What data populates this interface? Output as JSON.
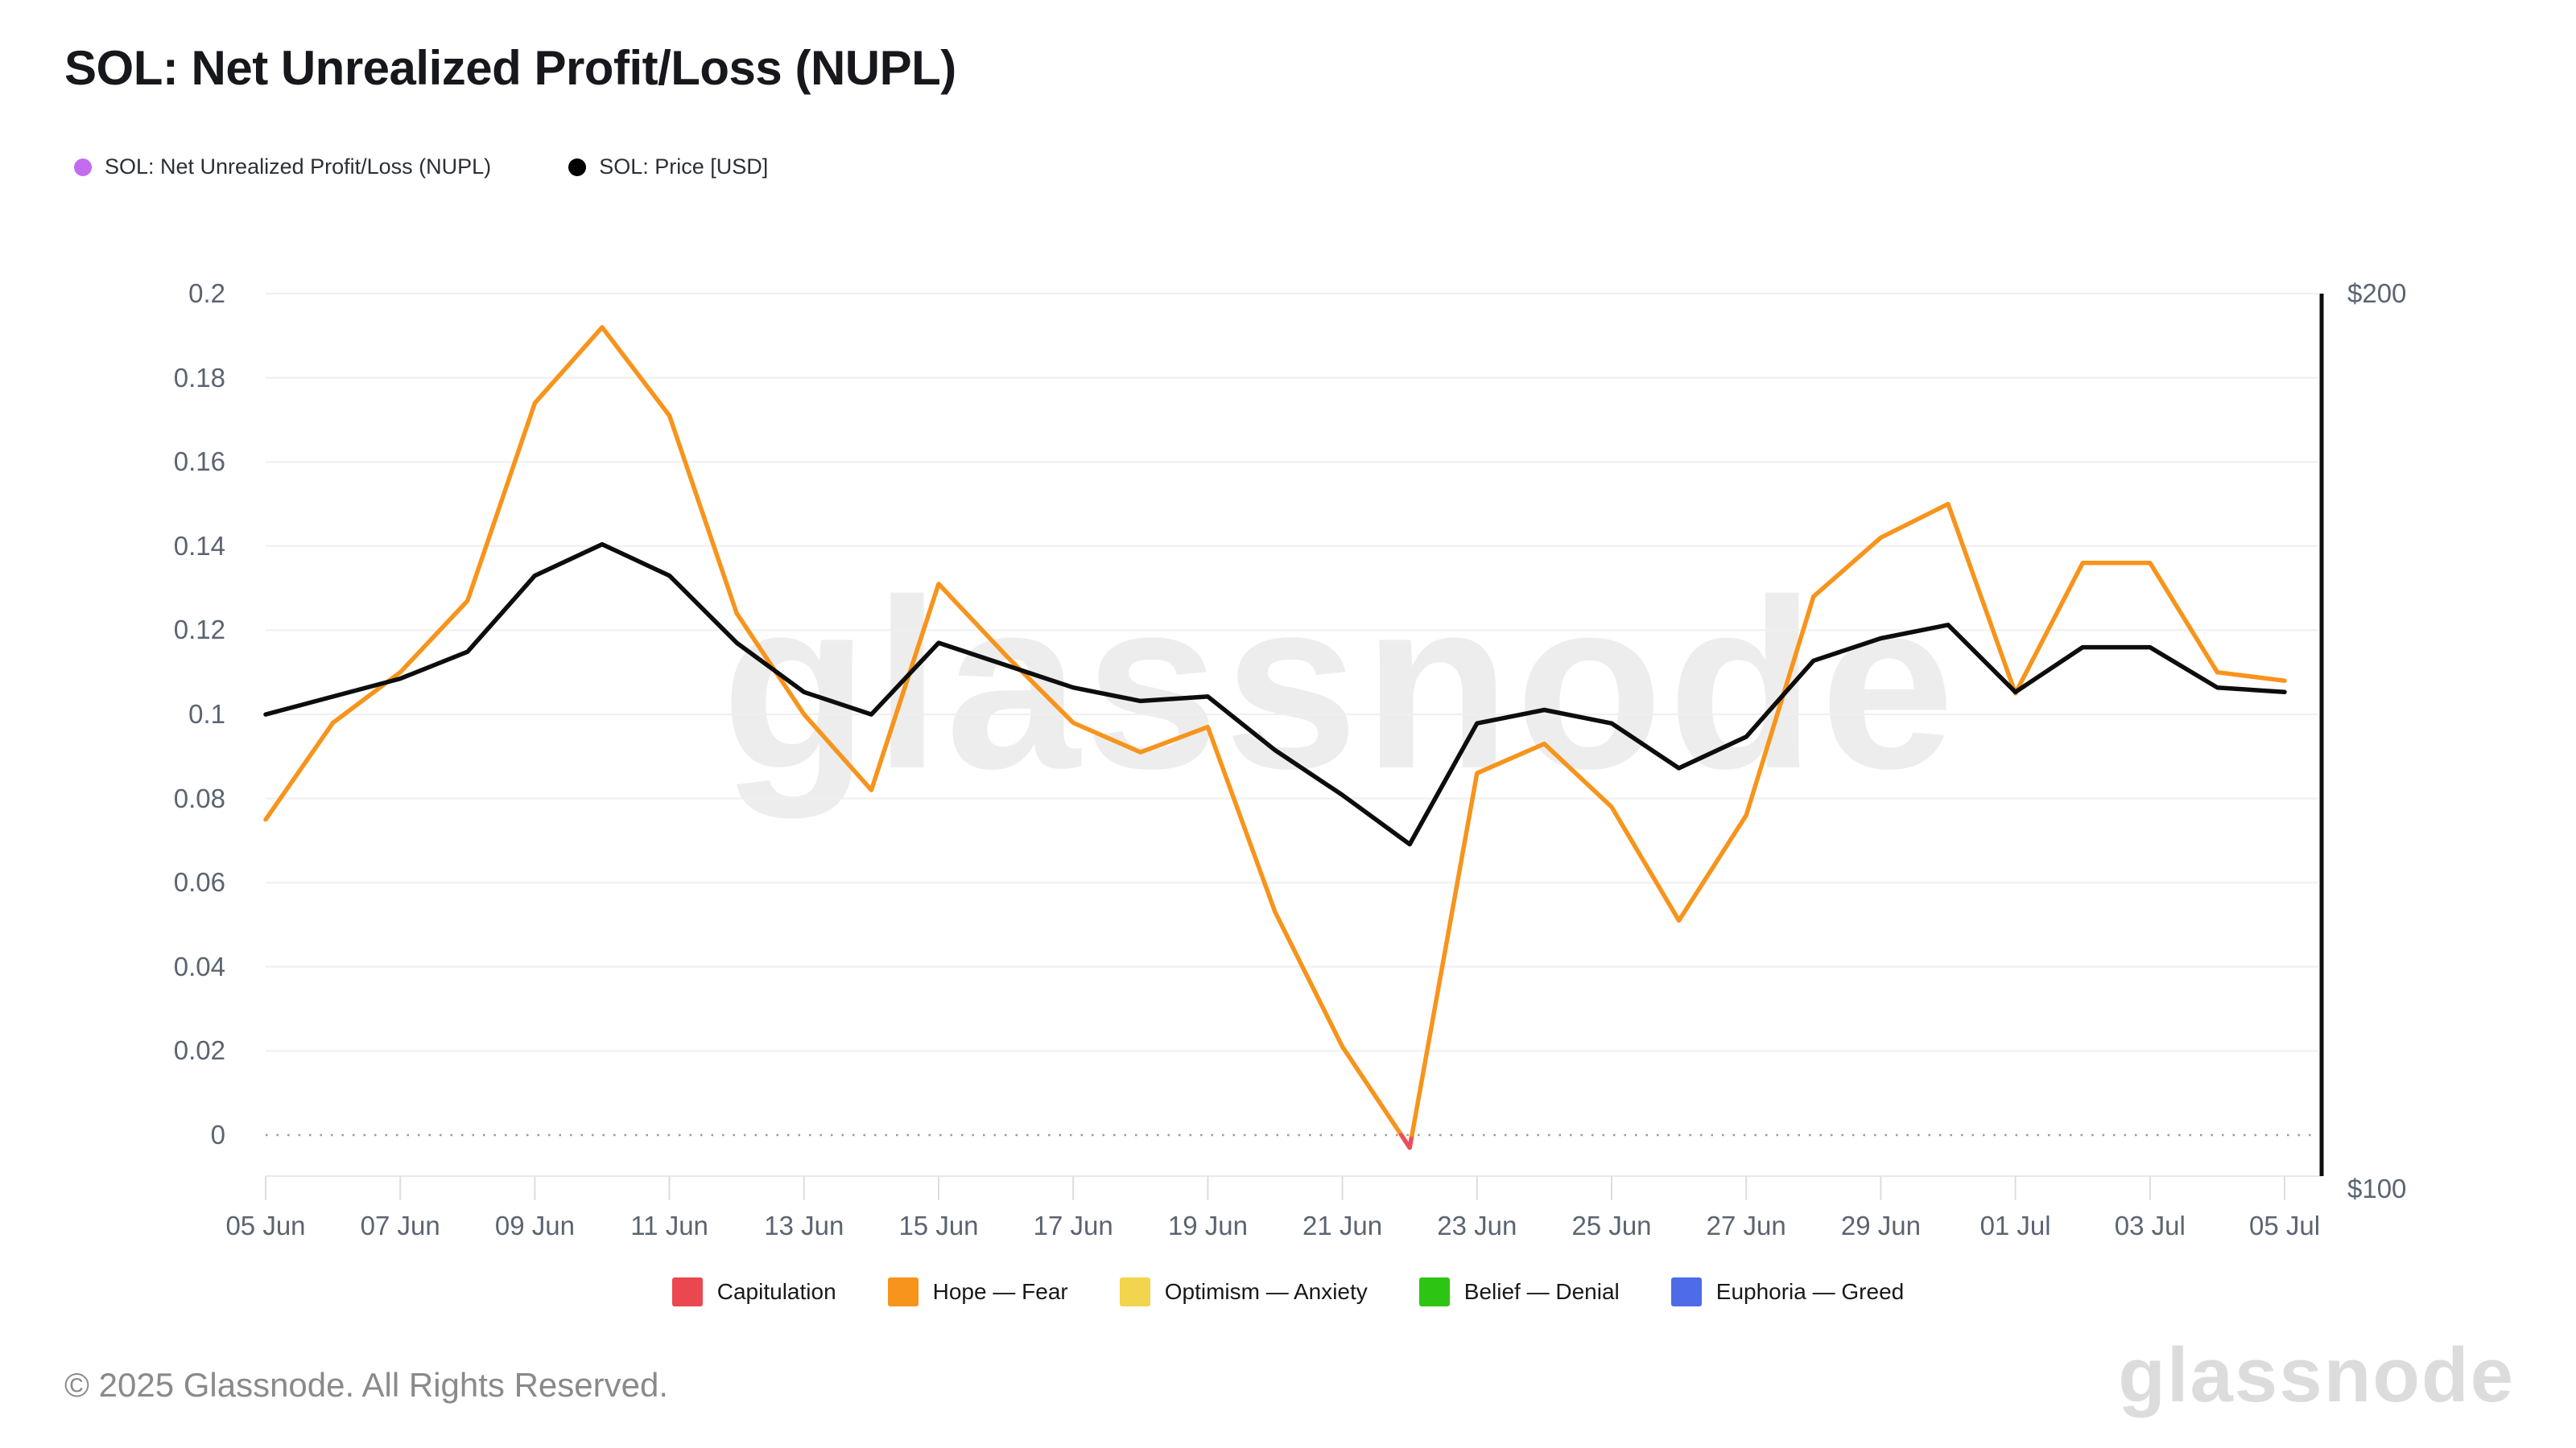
{
  "header": {
    "title": "SOL: Net Unrealized Profit/Loss (NUPL)"
  },
  "top_legend": [
    {
      "label": "SOL: Net Unrealized Profit/Loss (NUPL)",
      "color": "#c36cf0"
    },
    {
      "label": "SOL: Price [USD]",
      "color": "#000000"
    }
  ],
  "watermark": "glassnode",
  "chart_data": {
    "type": "line",
    "title": "SOL: Net Unrealized Profit/Loss (NUPL)",
    "x": [
      "05 Jun",
      "06 Jun",
      "07 Jun",
      "08 Jun",
      "09 Jun",
      "10 Jun",
      "11 Jun",
      "12 Jun",
      "13 Jun",
      "14 Jun",
      "15 Jun",
      "16 Jun",
      "17 Jun",
      "18 Jun",
      "19 Jun",
      "20 Jun",
      "21 Jun",
      "22 Jun",
      "23 Jun",
      "24 Jun",
      "25 Jun",
      "26 Jun",
      "27 Jun",
      "28 Jun",
      "29 Jun",
      "30 Jun",
      "01 Jul",
      "02 Jul",
      "03 Jul",
      "04 Jul",
      "05 Jul"
    ],
    "series": [
      {
        "name": "SOL: Net Unrealized Profit/Loss (NUPL)",
        "axis": "left",
        "color": "#f7941c",
        "negative_color": "#ec4f58",
        "values": [
          0.075,
          0.098,
          0.11,
          0.127,
          0.174,
          0.192,
          0.171,
          0.124,
          0.1,
          0.082,
          0.131,
          0.114,
          0.098,
          0.091,
          0.097,
          0.053,
          0.021,
          -0.003,
          0.086,
          0.093,
          0.078,
          0.051,
          0.076,
          0.128,
          0.142,
          0.15,
          0.105,
          0.136,
          0.136,
          0.11,
          0.108
        ]
      },
      {
        "name": "SOL: Price [USD]",
        "axis": "right",
        "color": "#0d0d0d",
        "values": [
          153.0,
          155.0,
          157.0,
          160.0,
          168.5,
          172.0,
          168.5,
          161.0,
          155.5,
          153.0,
          161.0,
          158.5,
          156.0,
          154.5,
          155.0,
          149.0,
          144.0,
          138.5,
          152.0,
          153.5,
          152.0,
          147.0,
          150.5,
          159.0,
          161.5,
          163.0,
          155.5,
          160.5,
          160.5,
          156.0,
          155.5
        ]
      }
    ],
    "y_axis_left": {
      "tick_labels": [
        "0.2",
        "0.18",
        "0.16",
        "0.14",
        "0.12",
        "0.1",
        "0.08",
        "0.06",
        "0.04",
        "0.02",
        "0"
      ],
      "tick_values": [
        0.2,
        0.18,
        0.16,
        0.14,
        0.12,
        0.1,
        0.08,
        0.06,
        0.04,
        0.02,
        0
      ],
      "range": [
        -0.01,
        0.2
      ],
      "grid": true,
      "zero_line_style": "dotted"
    },
    "y_axis_right": {
      "tick_labels": [
        "$200",
        "$100"
      ],
      "tick_values": [
        200,
        100
      ],
      "range": [
        98,
        200
      ]
    },
    "x_axis": {
      "tick_labels": [
        "05 Jun",
        "07 Jun",
        "09 Jun",
        "11 Jun",
        "13 Jun",
        "15 Jun",
        "17 Jun",
        "19 Jun",
        "21 Jun",
        "23 Jun",
        "25 Jun",
        "27 Jun",
        "29 Jun",
        "01 Jul",
        "03 Jul",
        "05 Jul"
      ]
    },
    "legend_position": "bottom"
  },
  "zone_legend": [
    {
      "label": "Capitulation",
      "color": "#ea4750"
    },
    {
      "label": "Hope — Fear",
      "color": "#f7941c"
    },
    {
      "label": "Optimism — Anxiety",
      "color": "#f2d44d"
    },
    {
      "label": "Belief — Denial",
      "color": "#2ec414"
    },
    {
      "label": "Euphoria — Greed",
      "color": "#4e6ce8"
    }
  ],
  "footer": {
    "copyright": "© 2025 Glassnode. All Rights Reserved.",
    "wordmark": "glassnode"
  }
}
